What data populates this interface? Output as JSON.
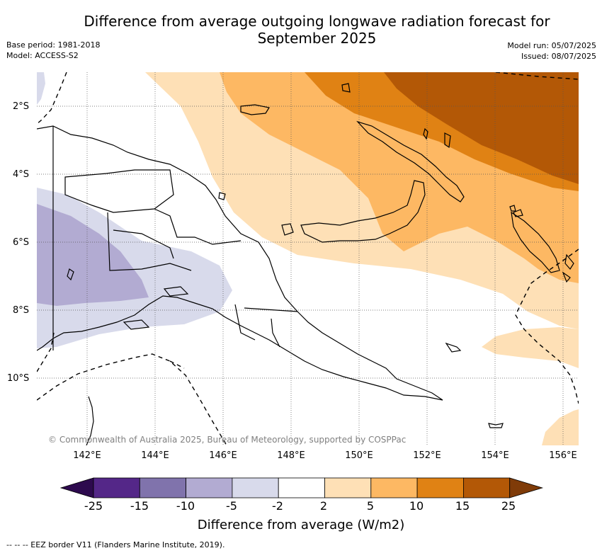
{
  "header": {
    "title_line1": "Difference from average outgoing longwave radiation forecast for",
    "title_line2": "September 2025",
    "base_period": "Base period: 1981-2018",
    "model": "Model: ACCESS-S2",
    "model_run": "Model run: 05/07/2025",
    "issued": "Issued: 08/07/2025"
  },
  "map": {
    "lat_labels": [
      "2°S",
      "4°S",
      "6°S",
      "8°S",
      "10°S"
    ],
    "lon_labels": [
      "142°E",
      "144°E",
      "146°E",
      "148°E",
      "150°E",
      "152°E",
      "154°E",
      "156°E"
    ],
    "copyright": "© Commonwealth of Australia 2025, Bureau of Meteorology, supported by COSPPac"
  },
  "colorbar": {
    "labels": [
      "-25",
      "-15",
      "-10",
      "-5",
      "-2",
      "2",
      "5",
      "10",
      "15",
      "25"
    ],
    "colors": [
      "#2d0a4e",
      "#542788",
      "#8073ac",
      "#b2abd2",
      "#d8daeb",
      "#ffffff",
      "#fee0b6",
      "#fdb863",
      "#e08214",
      "#b35806",
      "#7f3b08"
    ],
    "title": "Difference from average (W/m2)"
  },
  "footnote": "--  --  -- EEZ border V11 (Flanders Marine Institute, 2019)."
}
